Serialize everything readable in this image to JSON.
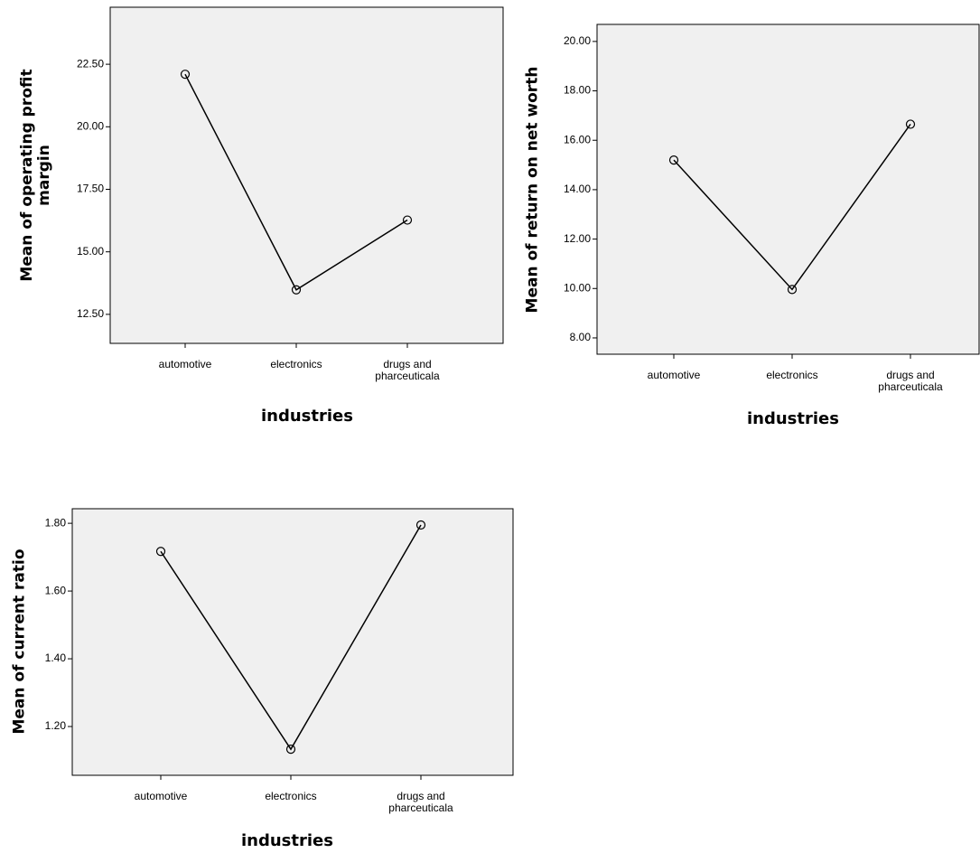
{
  "chart_data": [
    {
      "type": "line",
      "y_label": "Mean of operating profit margin",
      "x_label": "industries",
      "categories": [
        "automotive",
        "electronics",
        "drugs and pharceuticala"
      ],
      "values": [
        22.1,
        13.48,
        16.27
      ],
      "color": "#000000",
      "ylim": [
        11.34,
        24.78
      ],
      "yticks": [
        {
          "value": 12.5,
          "label": "12.50"
        },
        {
          "value": 15,
          "label": "15.00"
        },
        {
          "value": 17.5,
          "label": "17.50"
        },
        {
          "value": 20,
          "label": "20.00"
        },
        {
          "value": 22.5,
          "label": "22.50"
        }
      ]
    },
    {
      "type": "line",
      "y_label": "Mean of return on net worth",
      "x_label": "industries",
      "categories": [
        "automotive",
        "electronics",
        "drugs and pharceuticala"
      ],
      "values": [
        15.2,
        9.96,
        16.65
      ],
      "color": "#000000",
      "ylim": [
        7.34,
        20.69
      ],
      "yticks": [
        {
          "value": 8,
          "label": "8.00"
        },
        {
          "value": 10,
          "label": "10.00"
        },
        {
          "value": 12,
          "label": "12.00"
        },
        {
          "value": 14,
          "label": "14.00"
        },
        {
          "value": 16,
          "label": "16.00"
        },
        {
          "value": 18,
          "label": "18.00"
        },
        {
          "value": 20,
          "label": "20.00"
        }
      ]
    },
    {
      "type": "line",
      "y_label": "Mean of current ratio",
      "x_label": "industries",
      "categories": [
        "automotive",
        "electronics",
        "drugs and pharceuticala"
      ],
      "values": [
        1.717,
        1.133,
        1.795
      ],
      "color": "#000000",
      "ylim": [
        1.056,
        1.843
      ],
      "yticks": [
        {
          "value": 1.2,
          "label": "1.20"
        },
        {
          "value": 1.4,
          "label": "1.40"
        },
        {
          "value": 1.6,
          "label": "1.60"
        },
        {
          "value": 1.8,
          "label": "1.80"
        }
      ]
    }
  ]
}
